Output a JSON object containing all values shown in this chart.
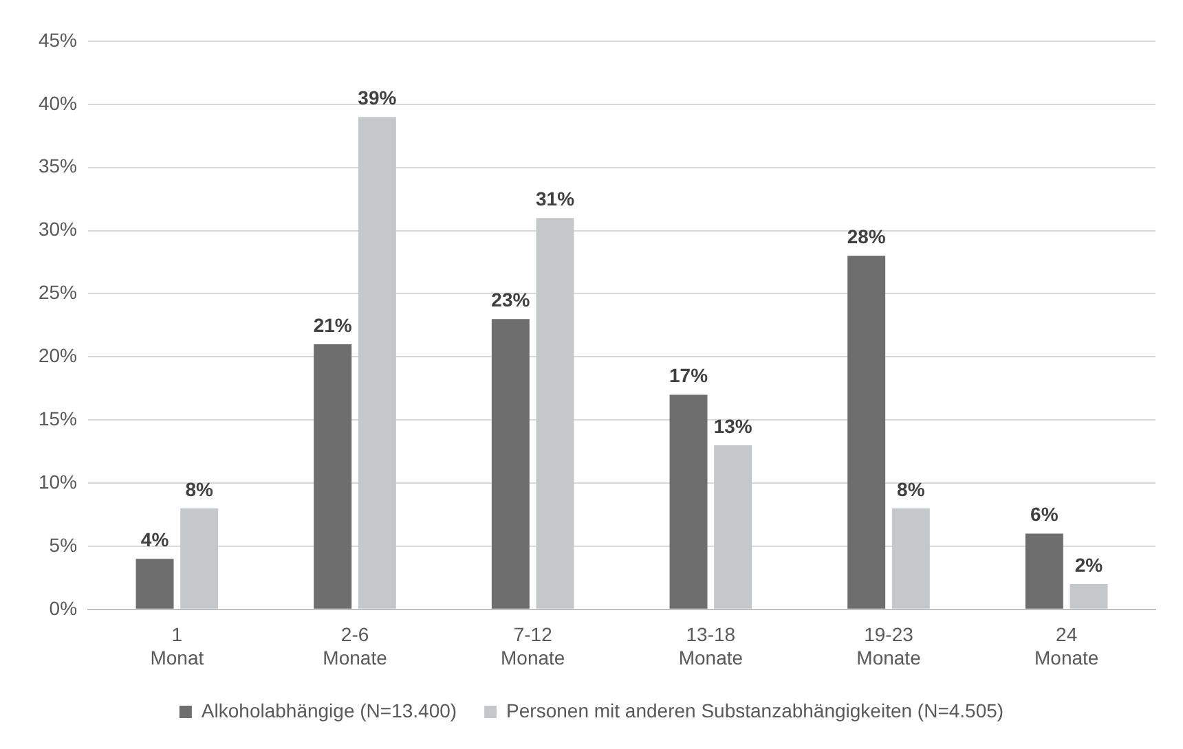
{
  "chart_data": {
    "type": "bar",
    "categories": [
      "1 Monat",
      "2-6 Monate",
      "7-12 Monate",
      "13-18 Monate",
      "19-23 Monate",
      "24 Monate"
    ],
    "series": [
      {
        "name": "Alkoholabhängige (N=13.400)",
        "color": "#6e6e6e",
        "values": [
          4,
          21,
          23,
          17,
          28,
          6
        ],
        "value_labels": [
          "4%",
          "21%",
          "23%",
          "17%",
          "28%",
          "6%"
        ]
      },
      {
        "name": "Personen mit anderen Substanzabhängigkeiten (N=4.505)",
        "color": "#c6c7c9",
        "values": [
          8,
          39,
          31,
          13,
          8,
          2
        ],
        "value_labels": [
          "8%",
          "39%",
          "31%",
          "13%",
          "8%",
          "2%"
        ]
      }
    ],
    "ylim": [
      0,
      45
    ],
    "yticks": [
      {
        "value": 0,
        "label": "0%"
      },
      {
        "value": 5,
        "label": "5%"
      },
      {
        "value": 10,
        "label": "10%"
      },
      {
        "value": 15,
        "label": "15%"
      },
      {
        "value": 20,
        "label": "20%"
      },
      {
        "value": 25,
        "label": "25%"
      },
      {
        "value": 30,
        "label": "30%"
      },
      {
        "value": 35,
        "label": "35%"
      },
      {
        "value": 40,
        "label": "40%"
      },
      {
        "value": 45,
        "label": "45%"
      }
    ],
    "grid": "y",
    "legend": "bottom"
  }
}
